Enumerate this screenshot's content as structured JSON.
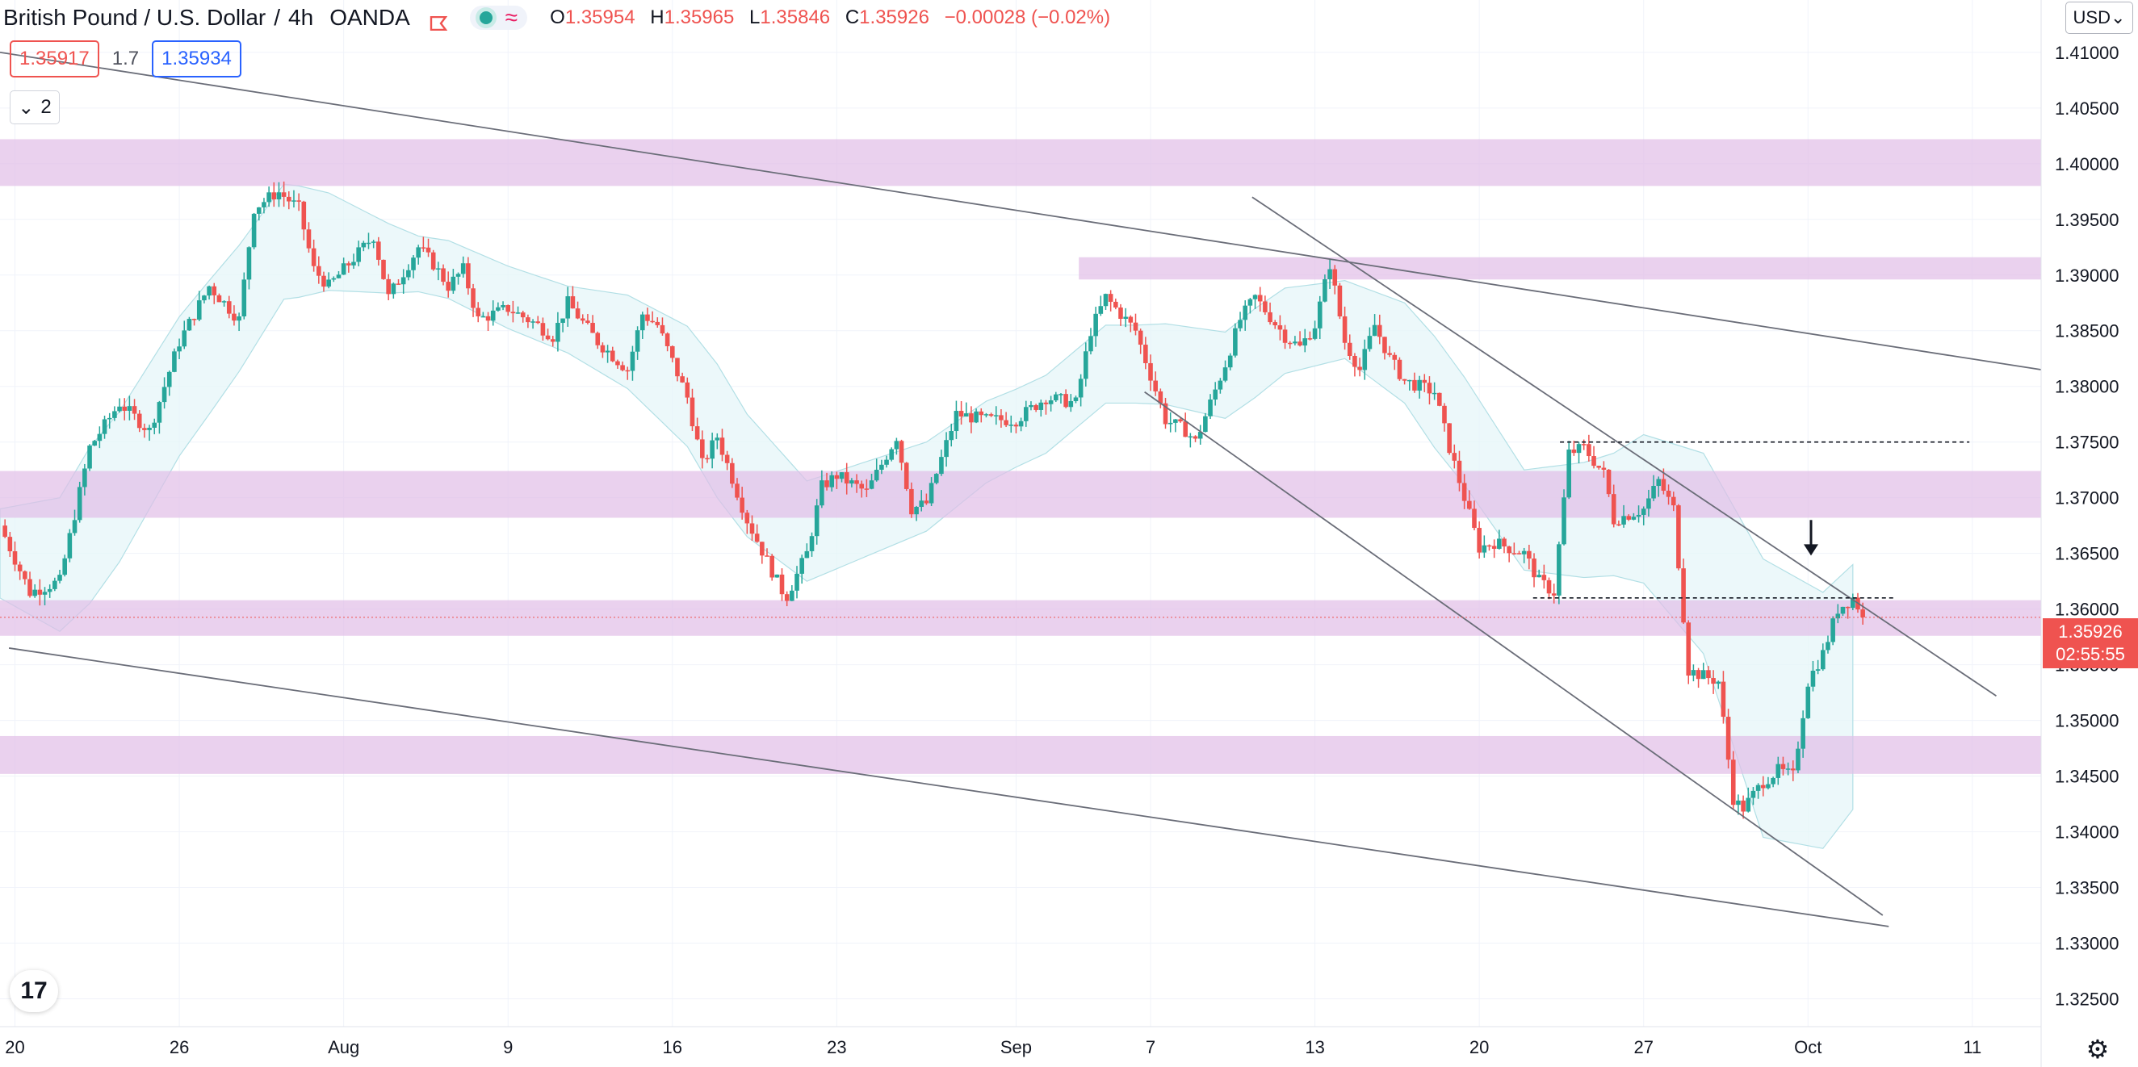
{
  "header": {
    "symbol": "British Pound / U.S. Dollar",
    "interval": "4h",
    "broker": "OANDA",
    "ohlc": {
      "o_label": "O",
      "o": "1.35954",
      "h_label": "H",
      "h": "1.35965",
      "l_label": "L",
      "l": "1.35846",
      "c_label": "C",
      "c": "1.35926",
      "change": "−0.00028 (−0.02%)"
    }
  },
  "quotes": {
    "sell": "1.35917",
    "spread": "1.7",
    "buy": "1.35934"
  },
  "collapse": {
    "count": "2"
  },
  "currency": "USD",
  "last_price": {
    "price": "1.35926",
    "countdown": "02:55:55"
  },
  "colors": {
    "up": "#26a69a",
    "down": "#ef5350",
    "zone": "#e1bee7",
    "band": "#e6f6f8",
    "trendline": "#131722",
    "axis_text": "#131722"
  },
  "chart_data": {
    "type": "candlestick",
    "y_axis": {
      "min": 1.3225,
      "max": 1.4147,
      "ticks": [
        1.325,
        1.33,
        1.335,
        1.34,
        1.345,
        1.35,
        1.355,
        1.36,
        1.365,
        1.37,
        1.375,
        1.38,
        1.385,
        1.39,
        1.395,
        1.4,
        1.405,
        1.41
      ]
    },
    "x_axis": {
      "ticks": [
        {
          "label": "20",
          "t": 0.5
        },
        {
          "label": "26",
          "t": 6
        },
        {
          "label": "Aug",
          "t": 11.5
        },
        {
          "label": "9",
          "t": 17
        },
        {
          "label": "16",
          "t": 22.5
        },
        {
          "label": "23",
          "t": 28
        },
        {
          "label": "Sep",
          "t": 34
        },
        {
          "label": "7",
          "t": 38.5
        },
        {
          "label": "13",
          "t": 44
        },
        {
          "label": "20",
          "t": 49.5
        },
        {
          "label": "27",
          "t": 55
        },
        {
          "label": "Oct",
          "t": 60.5
        },
        {
          "label": "11",
          "t": 66
        }
      ]
    },
    "t_range": [
      0,
      68.3
    ],
    "close_path": [
      [
        0,
        1.3675
      ],
      [
        1,
        1.3615
      ],
      [
        2,
        1.3625
      ],
      [
        3,
        1.3745
      ],
      [
        4,
        1.3785
      ],
      [
        5,
        1.376
      ],
      [
        6,
        1.384
      ],
      [
        7,
        1.389
      ],
      [
        8,
        1.386
      ],
      [
        8.5,
        1.396
      ],
      [
        9.3,
        1.3975
      ],
      [
        10,
        1.396
      ],
      [
        10.5,
        1.3905
      ],
      [
        11,
        1.389
      ],
      [
        12,
        1.392
      ],
      [
        12.5,
        1.3935
      ],
      [
        13,
        1.388
      ],
      [
        14,
        1.3925
      ],
      [
        14.5,
        1.391
      ],
      [
        15,
        1.389
      ],
      [
        15.5,
        1.3905
      ],
      [
        16,
        1.386
      ],
      [
        17,
        1.387
      ],
      [
        18,
        1.3855
      ],
      [
        18.5,
        1.3845
      ],
      [
        19,
        1.3875
      ],
      [
        20,
        1.384
      ],
      [
        21,
        1.3815
      ],
      [
        21.5,
        1.3865
      ],
      [
        22,
        1.3855
      ],
      [
        23,
        1.379
      ],
      [
        23.5,
        1.373
      ],
      [
        24,
        1.3755
      ],
      [
        25,
        1.368
      ],
      [
        26,
        1.3625
      ],
      [
        26.3,
        1.361
      ],
      [
        27,
        1.365
      ],
      [
        27.5,
        1.371
      ],
      [
        28,
        1.372
      ],
      [
        29,
        1.3705
      ],
      [
        30,
        1.3755
      ],
      [
        30.5,
        1.369
      ],
      [
        31,
        1.3695
      ],
      [
        32,
        1.3775
      ],
      [
        33,
        1.377
      ],
      [
        34,
        1.377
      ],
      [
        35,
        1.379
      ],
      [
        36,
        1.3785
      ],
      [
        36.5,
        1.385
      ],
      [
        37,
        1.388
      ],
      [
        38,
        1.385
      ],
      [
        38.5,
        1.381
      ],
      [
        39,
        1.377
      ],
      [
        39.7,
        1.376
      ],
      [
        40,
        1.375
      ],
      [
        41,
        1.382
      ],
      [
        41.5,
        1.386
      ],
      [
        42,
        1.388
      ],
      [
        43,
        1.3845
      ],
      [
        43.5,
        1.3835
      ],
      [
        44,
        1.3855
      ],
      [
        44.5,
        1.391
      ],
      [
        45,
        1.384
      ],
      [
        45.5,
        1.3815
      ],
      [
        46,
        1.3855
      ],
      [
        46.5,
        1.3825
      ],
      [
        47,
        1.3805
      ],
      [
        48,
        1.3795
      ],
      [
        48.5,
        1.3745
      ],
      [
        49,
        1.37
      ],
      [
        49.5,
        1.3655
      ],
      [
        50,
        1.366
      ],
      [
        51,
        1.365
      ],
      [
        51.5,
        1.3625
      ],
      [
        52,
        1.3615
      ],
      [
        52.5,
        1.374
      ],
      [
        53,
        1.3745
      ],
      [
        53.7,
        1.372
      ],
      [
        54,
        1.368
      ],
      [
        55,
        1.369
      ],
      [
        55.5,
        1.3715
      ],
      [
        56,
        1.369
      ],
      [
        56.5,
        1.3545
      ],
      [
        57,
        1.354
      ],
      [
        57.5,
        1.3535
      ],
      [
        58,
        1.343
      ],
      [
        58.3,
        1.342
      ],
      [
        59,
        1.3445
      ],
      [
        59.5,
        1.3455
      ],
      [
        60,
        1.345
      ],
      [
        60.5,
        1.3535
      ],
      [
        61,
        1.356
      ],
      [
        61.5,
        1.36
      ],
      [
        62,
        1.361
      ],
      [
        62.4,
        1.35926
      ]
    ],
    "band_center_path": [
      [
        0,
        1.365
      ],
      [
        2,
        1.364
      ],
      [
        4,
        1.371
      ],
      [
        6,
        1.38
      ],
      [
        8,
        1.387
      ],
      [
        9.5,
        1.393
      ],
      [
        11,
        1.393
      ],
      [
        13,
        1.3915
      ],
      [
        15,
        1.3905
      ],
      [
        17,
        1.388
      ],
      [
        19,
        1.386
      ],
      [
        21,
        1.384
      ],
      [
        23,
        1.38
      ],
      [
        25,
        1.372
      ],
      [
        27,
        1.367
      ],
      [
        29,
        1.369
      ],
      [
        31,
        1.371
      ],
      [
        33,
        1.375
      ],
      [
        35,
        1.3775
      ],
      [
        37,
        1.382
      ],
      [
        39,
        1.382
      ],
      [
        41,
        1.381
      ],
      [
        43,
        1.385
      ],
      [
        45,
        1.386
      ],
      [
        47,
        1.383
      ],
      [
        49,
        1.376
      ],
      [
        51,
        1.368
      ],
      [
        53,
        1.368
      ],
      [
        55,
        1.369
      ],
      [
        57,
        1.365
      ],
      [
        59,
        1.352
      ],
      [
        61,
        1.35
      ],
      [
        62,
        1.353
      ]
    ],
    "band_halfwidth": [
      [
        0,
        0.004
      ],
      [
        3,
        0.007
      ],
      [
        7,
        0.006
      ],
      [
        10,
        0.005
      ],
      [
        14,
        0.0025
      ],
      [
        19,
        0.003
      ],
      [
        24,
        0.006
      ],
      [
        27,
        0.0045
      ],
      [
        31,
        0.004
      ],
      [
        34,
        0.0035
      ],
      [
        38,
        0.0035
      ],
      [
        42,
        0.004
      ],
      [
        45,
        0.0035
      ],
      [
        48,
        0.005
      ],
      [
        51,
        0.0045
      ],
      [
        54,
        0.0055
      ],
      [
        57,
        0.009
      ],
      [
        59,
        0.0125
      ],
      [
        62,
        0.011
      ]
    ],
    "zones": [
      {
        "t0": 0,
        "t1": 68.3,
        "y0": 1.398,
        "y1": 1.4022
      },
      {
        "t0": 36.1,
        "t1": 68.3,
        "y0": 1.3896,
        "y1": 1.3916
      },
      {
        "t0": 0,
        "t1": 68.3,
        "y0": 1.3682,
        "y1": 1.3724
      },
      {
        "t0": 0,
        "t1": 68.3,
        "y0": 1.3576,
        "y1": 1.3608
      },
      {
        "t0": 0,
        "t1": 68.3,
        "y0": 1.3452,
        "y1": 1.3486
      }
    ],
    "trendlines": [
      {
        "t0": 0,
        "y0": 1.41,
        "t1": 68.3,
        "y1": 1.3815
      },
      {
        "t0": 0.3,
        "y0": 1.3565,
        "t1": 63.2,
        "y1": 1.3315
      },
      {
        "t0": 41.9,
        "y0": 1.397,
        "t1": 66.8,
        "y1": 1.3522
      },
      {
        "t0": 38.3,
        "y0": 1.3795,
        "t1": 63.0,
        "y1": 1.3325
      }
    ],
    "dashed_levels": [
      {
        "t0": 52.2,
        "t1": 65.9,
        "y": 1.375
      },
      {
        "t0": 51.3,
        "t1": 63.4,
        "y": 1.361
      }
    ],
    "arrow": {
      "t": 60.6,
      "y_from": 1.368,
      "y_to": 1.3648
    },
    "last_price": 1.35926
  }
}
